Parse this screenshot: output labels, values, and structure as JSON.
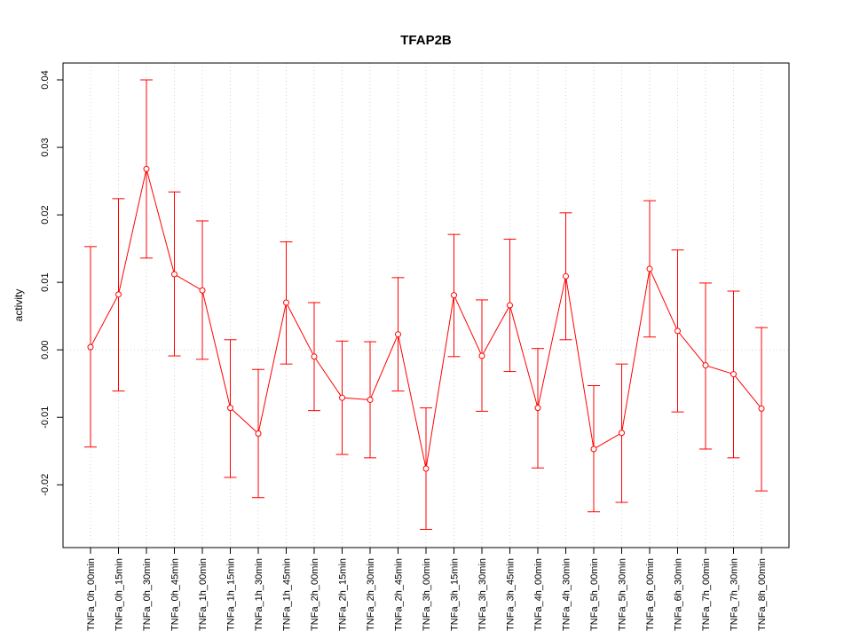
{
  "chart_data": {
    "type": "line",
    "title": "TFAP2B",
    "xlabel": "",
    "ylabel": "activity",
    "ylim": [
      -0.0293,
      0.0425
    ],
    "y_ticks": [
      -0.02,
      -0.01,
      0.0,
      0.01,
      0.02,
      0.03,
      0.04
    ],
    "y_tick_labels": [
      "-0.02",
      "-0.01",
      "0.00",
      "0.01",
      "0.02",
      "0.03",
      "0.04"
    ],
    "grid": true,
    "series_color": "#ff0000",
    "categories": [
      "TNFa_0h_00min",
      "TNFa_0h_15min",
      "TNFa_0h_30min",
      "TNFa_0h_45min",
      "TNFa_1h_00min",
      "TNFa_1h_15min",
      "TNFa_1h_30min",
      "TNFa_1h_45min",
      "TNFa_2h_00min",
      "TNFa_2h_15min",
      "TNFa_2h_30min",
      "TNFa_2h_45min",
      "TNFa_3h_00min",
      "TNFa_3h_15min",
      "TNFa_3h_30min",
      "TNFa_3h_45min",
      "TNFa_4h_00min",
      "TNFa_4h_30min",
      "TNFa_5h_00min",
      "TNFa_5h_30min",
      "TNFa_6h_00min",
      "TNFa_6h_30min",
      "TNFa_7h_00min",
      "TNFa_7h_30min",
      "TNFa_8h_00min"
    ],
    "values": [
      0.0004,
      0.0082,
      0.0268,
      0.0112,
      0.0088,
      -0.0086,
      -0.0124,
      0.007,
      -0.001,
      -0.0071,
      -0.0074,
      0.0023,
      -0.0176,
      0.0081,
      -0.0009,
      0.0066,
      -0.0086,
      0.0109,
      -0.0147,
      -0.0123,
      0.012,
      0.0028,
      -0.0023,
      -0.0036,
      -0.0087
    ],
    "upper": [
      0.0153,
      0.0224,
      0.04,
      0.0234,
      0.0191,
      0.0015,
      -0.0029,
      0.016,
      0.007,
      0.0013,
      0.0012,
      0.0107,
      -0.0086,
      0.0171,
      0.0074,
      0.0164,
      0.0002,
      0.0203,
      -0.0053,
      -0.0021,
      0.0221,
      0.0148,
      0.0099,
      0.0087,
      0.0033
    ],
    "lower": [
      -0.0144,
      -0.0061,
      0.0136,
      -0.0009,
      -0.0014,
      -0.0189,
      -0.0219,
      -0.0021,
      -0.009,
      -0.0155,
      -0.016,
      -0.0061,
      -0.0266,
      -0.001,
      -0.0091,
      -0.0032,
      -0.0175,
      0.0015,
      -0.024,
      -0.0226,
      0.0019,
      -0.0092,
      -0.0147,
      -0.016,
      -0.0209
    ]
  }
}
